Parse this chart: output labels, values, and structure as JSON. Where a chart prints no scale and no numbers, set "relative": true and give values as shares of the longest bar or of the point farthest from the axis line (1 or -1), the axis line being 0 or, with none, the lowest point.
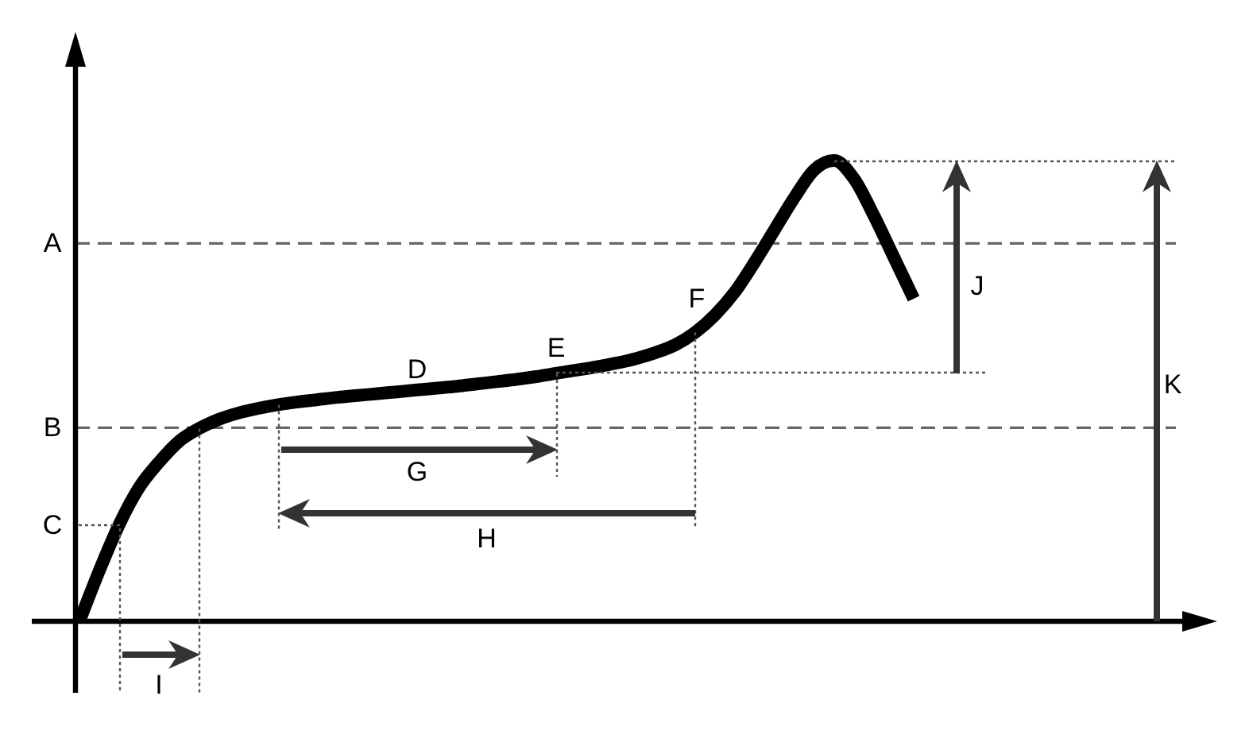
{
  "chart_data": {
    "type": "line",
    "relative": true,
    "categories": [
      null,
      null,
      null,
      null,
      null,
      null,
      null,
      null,
      null,
      null,
      null,
      null,
      null,
      null,
      null,
      null,
      null,
      null,
      null,
      null,
      null,
      null,
      null,
      null,
      null,
      null,
      null,
      null,
      null,
      null,
      null,
      null,
      null,
      null,
      null,
      null,
      null,
      null,
      null,
      null,
      null,
      null,
      null
    ],
    "series": [
      {
        "color": "#000000",
        "values": [
          0,
          0.11,
          0.21,
          0.29,
          0.345,
          0.39,
          0.418,
          0.438,
          0.452,
          0.462,
          0.47,
          0.476,
          0.481,
          0.486,
          0.49,
          0.494,
          0.498,
          0.502,
          0.506,
          0.51,
          0.515,
          0.52,
          0.525,
          0.531,
          0.538,
          0.545,
          0.552,
          0.56,
          0.57,
          0.583,
          0.6,
          0.627,
          0.665,
          0.715,
          0.78,
          0.85,
          0.92,
          0.98,
          1,
          0.96,
          0.88,
          0.79,
          0.7
        ]
      }
    ],
    "ref_lines": [
      {
        "axis": "y",
        "value": 0.82,
        "label": "A",
        "line_style": "dashed",
        "color": "#666666"
      },
      {
        "axis": "y",
        "value": 0.42,
        "label": "B",
        "line_style": "dashed",
        "color": "#666666"
      }
    ],
    "annotations": [
      "C",
      "D",
      "E",
      "F",
      "G",
      "H",
      "I",
      "J",
      "K"
    ]
  }
}
